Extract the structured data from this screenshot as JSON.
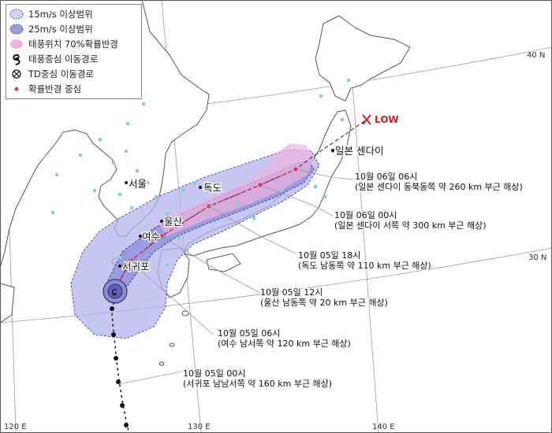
{
  "legend": {
    "items": [
      {
        "label": "15m/s 이상범위",
        "symbol": "circle-15ms-icon"
      },
      {
        "label": "25m/s 이상범위",
        "symbol": "circle-25ms-icon"
      },
      {
        "label": "태풍위치 70%확률반경",
        "symbol": "probability-radius-icon"
      },
      {
        "label": "태풍중심 이동경로",
        "symbol": "typhoon-symbol-icon"
      },
      {
        "label": "TD중심 이동경로",
        "symbol": "td-cross-circle-icon"
      },
      {
        "label": "확률반경 중심",
        "symbol": "red-dot-icon"
      }
    ]
  },
  "cities": {
    "seoul": "서울",
    "dokdo": "독도",
    "ulsan": "울산",
    "yeosu": "여수",
    "seogwipo": "서귀포",
    "sendai": "일본 센다이"
  },
  "low_label": "LOW",
  "axes": {
    "lat40": "40 N",
    "lat30": "30 N",
    "lon120": "120 E",
    "lon130": "130 E",
    "lon140": "140 E"
  },
  "forecasts": [
    {
      "time": "10월 05일 00시",
      "desc": "(서귀포 남남서쪽 약 160 km 부근 해상)"
    },
    {
      "time": "10월 05일 06시",
      "desc": "(여수 남서쪽 약 120 km 부근 해상)"
    },
    {
      "time": "10월 05일 12시",
      "desc": "(울산 남동쪽 약 20 km 부근 해상)"
    },
    {
      "time": "10월 05일 18시",
      "desc": "(독도 남동쪽 약 110 km 부근 해상)"
    },
    {
      "time": "10월 06일 00시",
      "desc": "(일본 센다이 서쪽 약 300 km 부근 해상)"
    },
    {
      "time": "10월 06일 06시",
      "desc": "(일본 센다이 동북동쪽 약 260 km 부근 해상)"
    }
  ],
  "colors": {
    "zone15": "#b4b4f0",
    "zone25": "#8c8cdc",
    "prob": "#f0b4dc",
    "track": "#111111",
    "forecast_track": "#e03060",
    "land": "#ffffff",
    "sea": "#ffffff"
  }
}
